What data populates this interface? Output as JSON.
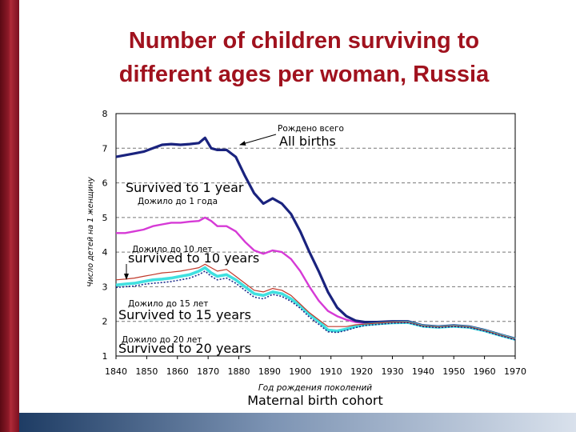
{
  "slide": {
    "title_line1": "Number of children surviving to",
    "title_line2": "different ages per woman, Russia"
  },
  "colors": {
    "title": "#a0121e",
    "all_births": "#1a237e",
    "survived_1": "#d63ad6",
    "survived_10": "#c0392b",
    "survived_15": "#40e0e0",
    "survived_20": "#1a2a8a"
  },
  "chart_data": {
    "type": "line",
    "title": "Number of children surviving to different ages per woman, Russia",
    "ylabel": "Число детей на 1 женщину",
    "xlabel_ru": "Год рождения поколений",
    "xlabel_en": "Maternal birth cohort",
    "xlim": [
      1840,
      1970
    ],
    "ylim": [
      1,
      8
    ],
    "xticks": [
      1840,
      1850,
      1860,
      1870,
      1880,
      1890,
      1900,
      1910,
      1920,
      1930,
      1940,
      1950,
      1960,
      1970
    ],
    "yticks": [
      1,
      2,
      3,
      4,
      5,
      6,
      7,
      8
    ],
    "grid": "horizontal dashed",
    "x": [
      1840,
      1843,
      1846,
      1849,
      1852,
      1855,
      1858,
      1861,
      1864,
      1867,
      1869,
      1871,
      1873,
      1876,
      1879,
      1882,
      1885,
      1888,
      1891,
      1894,
      1897,
      1900,
      1903,
      1906,
      1909,
      1912,
      1915,
      1918,
      1921,
      1925,
      1930,
      1935,
      1940,
      1945,
      1950,
      1955,
      1960,
      1965,
      1970
    ],
    "series": [
      {
        "name": "All births",
        "name_ru": "Рождено всего",
        "values": [
          6.75,
          6.8,
          6.85,
          6.9,
          7.0,
          7.1,
          7.12,
          7.1,
          7.12,
          7.15,
          7.3,
          7.0,
          6.95,
          6.95,
          6.75,
          6.2,
          5.7,
          5.4,
          5.55,
          5.4,
          5.1,
          4.6,
          4.0,
          3.45,
          2.85,
          2.4,
          2.15,
          2.02,
          1.98,
          1.98,
          2.0,
          2.0,
          1.88,
          1.85,
          1.88,
          1.85,
          1.75,
          1.62,
          1.5
        ]
      },
      {
        "name": "Survived to 1 year",
        "name_ru": "Дожило до 1 года",
        "values": [
          4.55,
          4.55,
          4.6,
          4.65,
          4.75,
          4.8,
          4.85,
          4.85,
          4.88,
          4.9,
          5.0,
          4.9,
          4.75,
          4.75,
          4.6,
          4.3,
          4.05,
          3.95,
          4.05,
          4.0,
          3.8,
          3.45,
          3.0,
          2.6,
          2.3,
          2.15,
          2.05,
          1.98,
          1.95,
          1.97,
          2.0,
          2.0,
          1.88,
          1.85,
          1.88,
          1.85,
          1.75,
          1.62,
          1.5
        ]
      },
      {
        "name": "Survived to 10 years",
        "name_ru": "Дожило до 10 лет",
        "values": [
          3.2,
          3.22,
          3.25,
          3.3,
          3.35,
          3.4,
          3.42,
          3.45,
          3.5,
          3.55,
          3.65,
          3.55,
          3.45,
          3.5,
          3.3,
          3.1,
          2.9,
          2.85,
          2.95,
          2.9,
          2.75,
          2.5,
          2.25,
          2.05,
          1.85,
          1.85,
          1.85,
          1.9,
          1.92,
          1.95,
          1.98,
          1.98,
          1.87,
          1.84,
          1.87,
          1.84,
          1.74,
          1.61,
          1.49
        ]
      },
      {
        "name": "Survived to 15 years",
        "name_ru": "Дожило до 15 лет",
        "values": [
          3.05,
          3.08,
          3.1,
          3.15,
          3.2,
          3.22,
          3.25,
          3.3,
          3.35,
          3.45,
          3.55,
          3.4,
          3.3,
          3.35,
          3.2,
          3.0,
          2.8,
          2.75,
          2.85,
          2.8,
          2.65,
          2.45,
          2.2,
          2.0,
          1.75,
          1.72,
          1.78,
          1.85,
          1.9,
          1.93,
          1.96,
          1.97,
          1.86,
          1.83,
          1.86,
          1.83,
          1.73,
          1.6,
          1.48
        ]
      },
      {
        "name": "Survived to 20 years",
        "name_ru": "Дожило до 20 лет",
        "values": [
          2.98,
          3.0,
          3.02,
          3.07,
          3.1,
          3.12,
          3.15,
          3.2,
          3.25,
          3.35,
          3.45,
          3.3,
          3.2,
          3.25,
          3.1,
          2.9,
          2.7,
          2.65,
          2.78,
          2.72,
          2.58,
          2.38,
          2.12,
          1.92,
          1.7,
          1.68,
          1.74,
          1.82,
          1.88,
          1.91,
          1.95,
          1.96,
          1.85,
          1.82,
          1.85,
          1.82,
          1.72,
          1.59,
          1.47
        ]
      }
    ],
    "annotations": [
      {
        "ru": "Рождено всего",
        "en": "All births"
      },
      {
        "ru": "Дожило до 1 года",
        "en": "Survived to 1 year"
      },
      {
        "ru": "Дожило до 10 лет",
        "en": "survived to 10 years"
      },
      {
        "ru": "Дожило до 15 лет",
        "en": "Survived to 15 years"
      },
      {
        "ru": "Дожило до 20 лет",
        "en": "Survived to 20 years"
      }
    ]
  }
}
